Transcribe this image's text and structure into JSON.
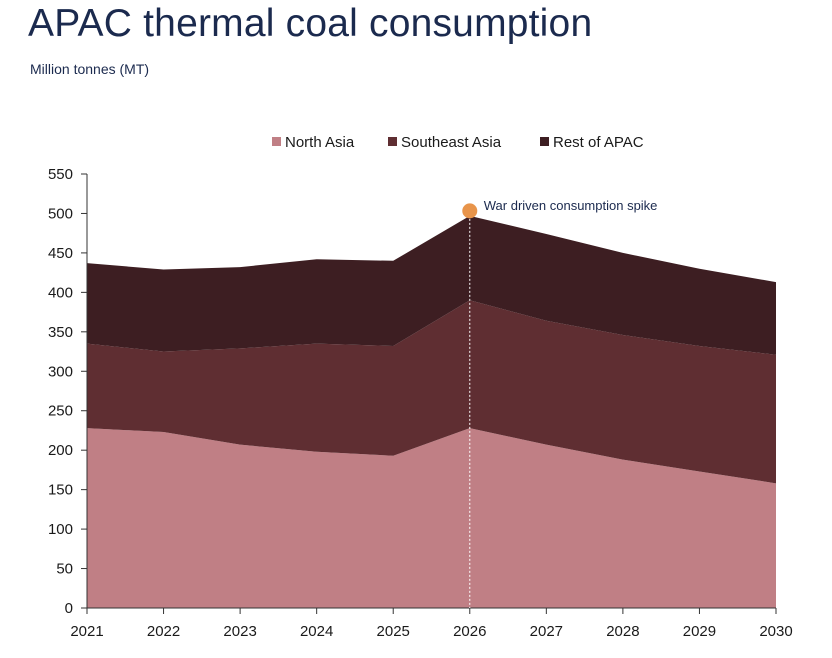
{
  "header": {
    "title": "APAC thermal coal consumption",
    "subtitle": "Million tonnes (MT)"
  },
  "chart_data": {
    "type": "area",
    "stacked": true,
    "x": [
      "2021",
      "2022",
      "2023",
      "2024",
      "2025",
      "2026",
      "2027",
      "2028",
      "2029",
      "2030"
    ],
    "ylim": [
      0,
      550
    ],
    "yticks": [
      0,
      50,
      100,
      150,
      200,
      250,
      300,
      350,
      400,
      450,
      500,
      550
    ],
    "grid": false,
    "legend_position": "top",
    "series": [
      {
        "name": "North Asia",
        "color": "#c07f85",
        "values": [
          228,
          223,
          207,
          198,
          193,
          228,
          207,
          188,
          173,
          158
        ]
      },
      {
        "name": "Southeast Asia",
        "color": "#5f2e32",
        "values": [
          107,
          102,
          122,
          137,
          139,
          162,
          157,
          158,
          159,
          163
        ]
      },
      {
        "name": "Rest of APAC",
        "color": "#3d1e22",
        "values": [
          102,
          104,
          103,
          107,
          108,
          107,
          110,
          104,
          98,
          92
        ]
      }
    ],
    "annotation": {
      "text": "War driven consumption spike",
      "x": "2026",
      "y": 502,
      "marker_color": "#e8944a"
    }
  }
}
